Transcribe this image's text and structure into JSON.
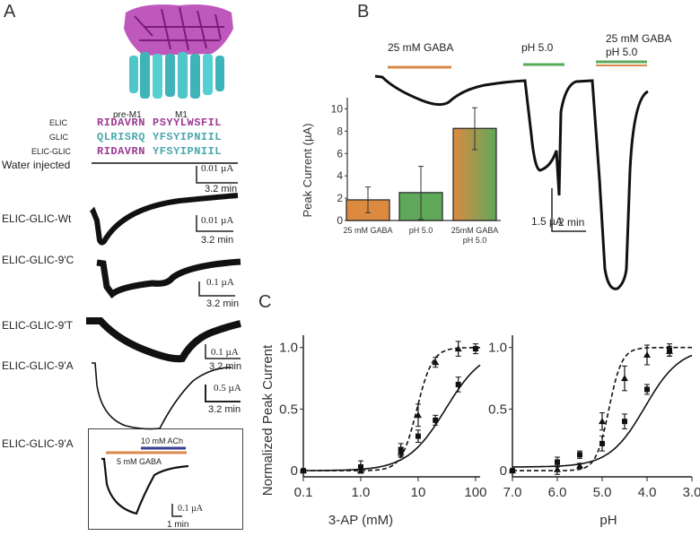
{
  "panels": {
    "A": {
      "letter": "A",
      "alignment": {
        "region_labels": [
          "pre-M1",
          "M1"
        ],
        "rows": [
          {
            "name": "ELIC",
            "pre": "RIDAVRN",
            "m1": "PSYYLWSFIL",
            "pre_color": "#9b3a93",
            "m1_color": "#9b3a93"
          },
          {
            "name": "GLIC",
            "pre": "QLRISRQ",
            "m1": "YFSYIPNIIL",
            "pre_color": "#4aa7ad",
            "m1_color": "#4aa7ad"
          },
          {
            "name": "ELIC-GLIC",
            "pre": "RIDAVRN",
            "m1": "YFSYIPNIIL",
            "pre_color": "#9b3a93",
            "m1_color": "#4aa7ad"
          }
        ]
      },
      "traces": [
        {
          "label": "Water injected",
          "scale_current": "0.01 µA",
          "scale_time": "3.2 min"
        },
        {
          "label": "ELIC-GLIC-Wt",
          "scale_current": "0.01 µA",
          "scale_time": "3.2 min"
        },
        {
          "label": "ELIC-GLIC-9'C",
          "scale_current": "0.1 µA",
          "scale_time": "3.2 min"
        },
        {
          "label": "ELIC-GLIC-9'T",
          "scale_current": "0.1 µA",
          "scale_time": "3.2 min"
        },
        {
          "label": "ELIC-GLIC-9'A",
          "scale_current": "0.5 µA",
          "scale_time": "3.2 min"
        }
      ],
      "inset": {
        "label": "ELIC-GLIC-9'A",
        "bar_ach": "10 mM ACh",
        "bar_gaba": "5 mM GABA",
        "scale_current": "0.1 µA",
        "scale_time": "1 min",
        "ach_color": "#3b3f8f",
        "gaba_color": "#d9894a"
      }
    },
    "B": {
      "letter": "B",
      "applications": [
        {
          "label": "25 mM GABA",
          "color": "#d9894a"
        },
        {
          "label": "pH 5.0",
          "color": "#5aaa5a"
        },
        {
          "label": "25 mM GABA\npH 5.0",
          "line1": "25 mM GABA",
          "line2": "pH 5.0",
          "color": "#5aaa5a",
          "color2": "#d9894a"
        }
      ],
      "scale_current": "1.5 µA",
      "scale_time": "2 min"
    },
    "C": {
      "letter": "C"
    }
  },
  "chart_data": [
    {
      "type": "bar",
      "title": "",
      "xlabel": "",
      "ylabel": "Peak Current  (µA)",
      "categories": [
        "25 mM GABA",
        "pH 5.0",
        "25mM GABA\npH 5.0"
      ],
      "category_lines": [
        [
          "25 mM GABA"
        ],
        [
          "pH 5.0"
        ],
        [
          "25mM GABA",
          "pH 5.0"
        ]
      ],
      "values": [
        1.85,
        2.5,
        8.25
      ],
      "error_low": [
        0.7,
        0.1,
        6.35
      ],
      "error_high": [
        3.0,
        4.85,
        10.1
      ],
      "colors": [
        "#dc8a40",
        "#5fa85a",
        "gradient:#dc8a40-#5fa85a"
      ],
      "ylim": [
        0,
        11
      ],
      "yticks": [
        0,
        2,
        4,
        6,
        8,
        10
      ],
      "grid": false
    },
    {
      "type": "line",
      "title": "",
      "xlabel": "3-AP (mM)",
      "ylabel": "Normalized Peak Current",
      "xscale": "log",
      "xlim": [
        0.1,
        120
      ],
      "ylim": [
        -0.05,
        1.1
      ],
      "xticks": [
        0.1,
        1.0,
        10,
        100
      ],
      "xtick_labels": [
        "0.1",
        "1.0",
        "10",
        "100"
      ],
      "yticks": [
        0,
        0.5,
        1.0
      ],
      "ytick_labels": [
        "0",
        "0.5",
        "1.0"
      ],
      "grid": false,
      "series": [
        {
          "name": "square (solid fit)",
          "marker": "square",
          "line": "solid",
          "x": [
            0.1,
            1,
            5,
            10,
            20,
            50,
            100
          ],
          "y": [
            0.0,
            0.03,
            0.17,
            0.28,
            0.41,
            0.7,
            0.99
          ],
          "err": [
            0.01,
            0.05,
            0.05,
            0.05,
            0.04,
            0.06,
            0.04
          ],
          "fit": {
            "ec50": 30,
            "hill": 1.3,
            "base": 0.0
          }
        },
        {
          "name": "triangle (dashed fit)",
          "marker": "triangle",
          "line": "dashed",
          "x": [
            0.1,
            1,
            5,
            10,
            20,
            50
          ],
          "y": [
            0.0,
            0.0,
            0.15,
            0.45,
            0.88,
            0.99
          ],
          "err": [
            0.01,
            0.02,
            0.04,
            0.09,
            0.04,
            0.06
          ],
          "fit": {
            "ec50": 9.5,
            "hill": 3.2,
            "base": 0.0
          }
        }
      ]
    },
    {
      "type": "line",
      "title": "",
      "xlabel": "pH",
      "ylabel": "",
      "xlim": [
        7.0,
        3.0
      ],
      "ylim": [
        -0.05,
        1.1
      ],
      "xticks": [
        7.0,
        6.0,
        5.0,
        4.0,
        3.0
      ],
      "xtick_labels": [
        "7.0",
        "6.0",
        "5.0",
        "4.0",
        "3.0"
      ],
      "yticks": [
        0,
        0.5,
        1.0
      ],
      "ytick_labels": [
        "0",
        "0.5",
        "1.0"
      ],
      "grid": false,
      "series": [
        {
          "name": "square (solid fit)",
          "marker": "square",
          "line": "solid",
          "x": [
            7.0,
            6.0,
            5.5,
            5.0,
            4.5,
            4.0,
            3.5
          ],
          "y": [
            0.0,
            0.07,
            0.13,
            0.22,
            0.4,
            0.66,
            0.98
          ],
          "err": [
            0.01,
            0.04,
            0.03,
            0.06,
            0.06,
            0.04,
            0.05
          ],
          "fit": {
            "pk": 4.05,
            "hill": 1.1,
            "base": 0.03
          }
        },
        {
          "name": "triangle (dashed fit)",
          "marker": "triangle",
          "line": "dashed",
          "x": [
            7.0,
            6.0,
            5.5,
            5.0,
            4.5,
            4.0,
            3.5
          ],
          "y": [
            0.0,
            0.01,
            0.04,
            0.4,
            0.75,
            0.94,
            0.97
          ],
          "err": [
            0.01,
            0.04,
            0.02,
            0.07,
            0.1,
            0.08,
            0.04
          ],
          "fit": {
            "pk": 4.85,
            "hill": 3.0,
            "base": 0.0
          }
        }
      ]
    }
  ]
}
